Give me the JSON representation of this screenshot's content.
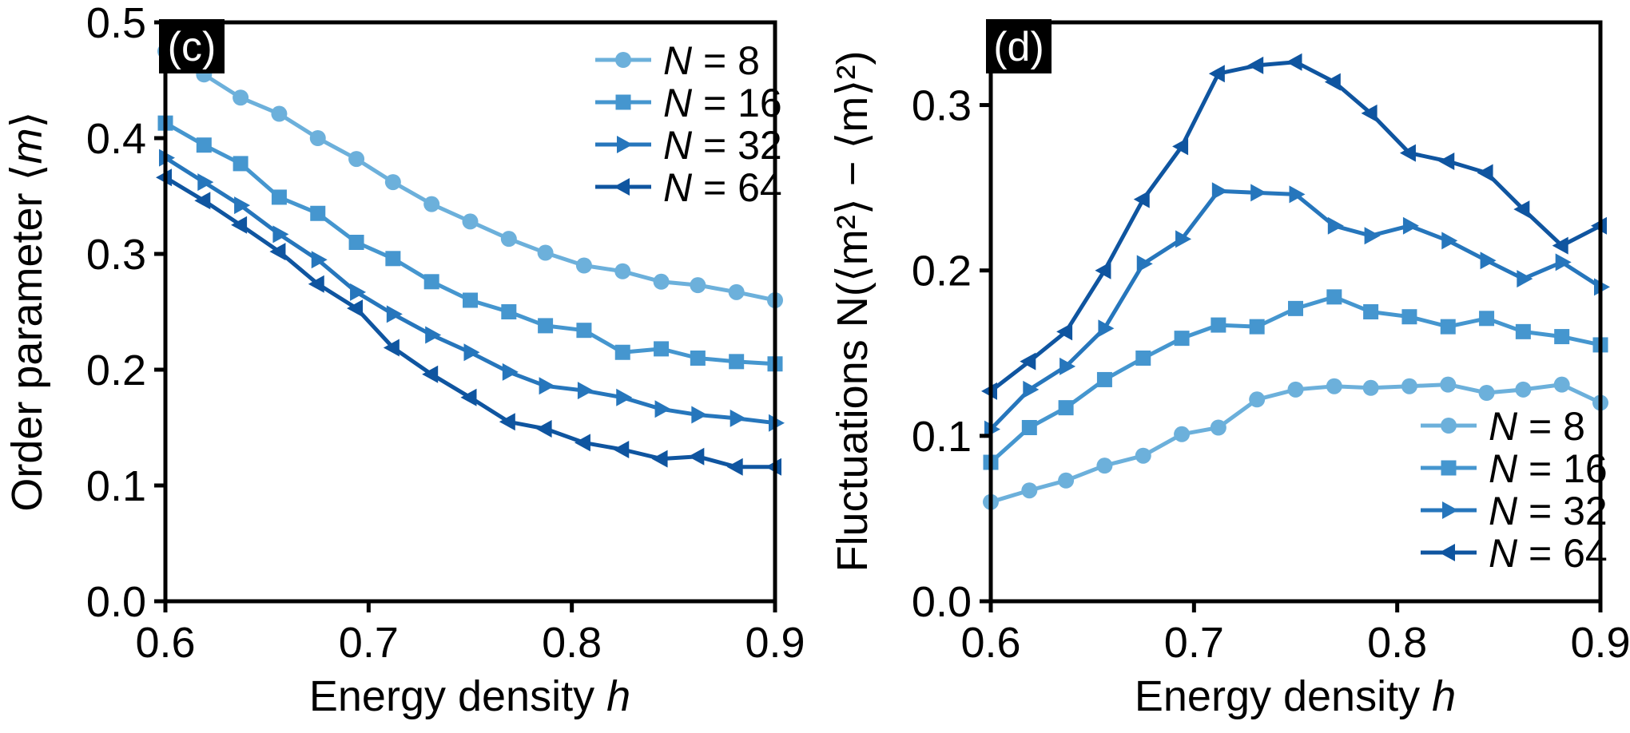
{
  "colors": {
    "N8": "#6cb0db",
    "N16": "#4596cf",
    "N32": "#2676bc",
    "N64": "#0f55a0",
    "axis": "#000000",
    "panel_bg": "#000000",
    "panel_text": "#ffffff"
  },
  "chart_data": [
    {
      "type": "line",
      "panel_label": "(c)",
      "xlabel_text": "Energy density ",
      "xlabel_var": "h",
      "ylabel_text": "Order parameter ⟨",
      "ylabel_var": "m",
      "ylabel_close": "⟩",
      "xlim": [
        0.6,
        0.9
      ],
      "ylim": [
        0.0,
        0.5
      ],
      "xticks": [
        0.6,
        0.7,
        0.8,
        0.9
      ],
      "xtick_labels": [
        "0.6",
        "0.7",
        "0.8",
        "0.9"
      ],
      "yticks": [
        0.0,
        0.1,
        0.2,
        0.3,
        0.4,
        0.5
      ],
      "ytick_labels": [
        "0.0",
        "0.1",
        "0.2",
        "0.3",
        "0.4",
        "0.5"
      ],
      "legend_position": "top-right",
      "x": [
        0.6,
        0.619,
        0.637,
        0.656,
        0.675,
        0.694,
        0.712,
        0.731,
        0.75,
        0.769,
        0.787,
        0.806,
        0.825,
        0.844,
        0.862,
        0.881,
        0.9
      ],
      "series": [
        {
          "name": "N = 8",
          "label_var": "N",
          "label_rest": " = 8",
          "marker": "circle",
          "color_key": "N8",
          "values": [
            0.475,
            0.455,
            0.435,
            0.421,
            0.4,
            0.382,
            0.362,
            0.343,
            0.328,
            0.313,
            0.301,
            0.29,
            0.285,
            0.276,
            0.273,
            0.267,
            0.26
          ]
        },
        {
          "name": "N = 16",
          "label_var": "N",
          "label_rest": " = 16",
          "marker": "square",
          "color_key": "N16",
          "values": [
            0.413,
            0.394,
            0.378,
            0.349,
            0.335,
            0.31,
            0.296,
            0.276,
            0.26,
            0.25,
            0.238,
            0.234,
            0.215,
            0.218,
            0.21,
            0.207,
            0.205
          ]
        },
        {
          "name": "N = 32",
          "label_var": "N",
          "label_rest": " = 32",
          "marker": "tri-right",
          "color_key": "N32",
          "values": [
            0.383,
            0.362,
            0.342,
            0.317,
            0.295,
            0.267,
            0.248,
            0.23,
            0.215,
            0.198,
            0.186,
            0.182,
            0.176,
            0.166,
            0.161,
            0.158,
            0.154
          ]
        },
        {
          "name": "N = 64",
          "label_var": "N",
          "label_rest": " = 64",
          "marker": "tri-left",
          "color_key": "N64",
          "values": [
            0.366,
            0.346,
            0.325,
            0.302,
            0.274,
            0.253,
            0.219,
            0.196,
            0.176,
            0.155,
            0.149,
            0.137,
            0.131,
            0.123,
            0.125,
            0.116,
            0.116
          ]
        }
      ]
    },
    {
      "type": "line",
      "panel_label": "(d)",
      "xlabel_text": "Energy density ",
      "xlabel_var": "h",
      "ylabel_text": "Fluctuations N(⟨m²⟩ − ⟨m⟩²)",
      "xlim": [
        0.6,
        0.9
      ],
      "ylim": [
        0.0,
        0.35
      ],
      "xticks": [
        0.6,
        0.7,
        0.8,
        0.9
      ],
      "xtick_labels": [
        "0.6",
        "0.7",
        "0.8",
        "0.9"
      ],
      "yticks": [
        0.0,
        0.1,
        0.2,
        0.3
      ],
      "ytick_labels": [
        "0.0",
        "0.1",
        "0.2",
        "0.3"
      ],
      "legend_position": "bottom-right",
      "x": [
        0.6,
        0.619,
        0.637,
        0.656,
        0.675,
        0.694,
        0.712,
        0.731,
        0.75,
        0.769,
        0.787,
        0.806,
        0.825,
        0.844,
        0.862,
        0.881,
        0.9
      ],
      "series": [
        {
          "name": "N = 8",
          "label_var": "N",
          "label_rest": " = 8",
          "marker": "circle",
          "color_key": "N8",
          "values": [
            0.06,
            0.067,
            0.073,
            0.082,
            0.088,
            0.101,
            0.105,
            0.122,
            0.128,
            0.13,
            0.129,
            0.13,
            0.131,
            0.126,
            0.128,
            0.131,
            0.12
          ]
        },
        {
          "name": "N = 16",
          "label_var": "N",
          "label_rest": " = 16",
          "marker": "square",
          "color_key": "N16",
          "values": [
            0.084,
            0.105,
            0.117,
            0.134,
            0.147,
            0.159,
            0.167,
            0.166,
            0.177,
            0.184,
            0.175,
            0.172,
            0.166,
            0.171,
            0.163,
            0.16,
            0.155
          ]
        },
        {
          "name": "N = 32",
          "label_var": "N",
          "label_rest": " = 32",
          "marker": "tri-right",
          "color_key": "N32",
          "values": [
            0.104,
            0.128,
            0.142,
            0.165,
            0.204,
            0.219,
            0.248,
            0.247,
            0.246,
            0.227,
            0.221,
            0.227,
            0.218,
            0.206,
            0.195,
            0.205,
            0.19
          ]
        },
        {
          "name": "N = 64",
          "label_var": "N",
          "label_rest": " = 64",
          "marker": "tri-left",
          "color_key": "N64",
          "values": [
            0.127,
            0.145,
            0.163,
            0.2,
            0.243,
            0.275,
            0.319,
            0.324,
            0.326,
            0.314,
            0.295,
            0.271,
            0.266,
            0.259,
            0.237,
            0.215,
            0.227
          ]
        }
      ]
    }
  ]
}
